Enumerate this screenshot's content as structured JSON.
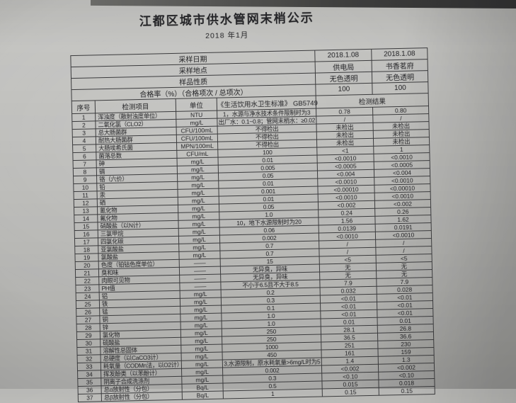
{
  "colors": {
    "paper": "#c2c2bf",
    "ink": "#232326",
    "table_line": "#3b3b3d",
    "top_strip": "#3d3d3c"
  },
  "title": "江都区城市供水管网末梢公示",
  "subtitle": "2018 年1月",
  "table": {
    "info_rows": [
      {
        "label": "采样日期",
        "values": [
          "2018.1.08",
          "2018.1.08"
        ]
      },
      {
        "label": "采样地点",
        "values": [
          "供电局",
          "书香茗府"
        ]
      },
      {
        "label": "样品性质",
        "values": [
          "无色透明",
          "无色透明"
        ]
      },
      {
        "label": "合格率（%）（合格项次 / 总项次）",
        "values": [
          "100",
          "100"
        ]
      }
    ],
    "columns": [
      "序号",
      "检测项目",
      "单位",
      "《生活饮用水卫生标准》 GB5749",
      "检测结果"
    ],
    "rows": [
      [
        "1",
        "浑浊度（散射浊度单位）",
        "NTU",
        "1，水源与净水技术条件限制时为3",
        "0.78",
        "0.80"
      ],
      [
        "2",
        "二氧化氯（CLO2）",
        "mg/L",
        "出厂水：0.1~0.8；管网末梢水：≥0.02",
        "/",
        "/"
      ],
      [
        "3",
        "总大肠菌群",
        "CFU/100mL",
        "不得检出",
        "未检出",
        "未检出"
      ],
      [
        "4",
        "耐热大肠菌群",
        "CFU/100mL",
        "不得检出",
        "未检出",
        "未检出"
      ],
      [
        "5",
        "大肠埃希氏菌",
        "MPN/100mL",
        "不得检出",
        "未检出",
        "未检出"
      ],
      [
        "6",
        "菌落总数",
        "CFU/mL",
        "100",
        "<1",
        "1"
      ],
      [
        "7",
        "砷",
        "mg/L",
        "0.01",
        "<0.0010",
        "<0.0010"
      ],
      [
        "8",
        "镉",
        "mg/L",
        "0.005",
        "<0.0005",
        "<0.0005"
      ],
      [
        "9",
        "铬（六价）",
        "mg/L",
        "0.05",
        "<0.004",
        "<0.004"
      ],
      [
        "10",
        "铅",
        "mg/L",
        "0.01",
        "<0.0010",
        "<0.0010"
      ],
      [
        "11",
        "汞",
        "mg/L",
        "0.001",
        "<0.00010",
        "<0.00010"
      ],
      [
        "12",
        "硒",
        "mg/L",
        "0.01",
        "<0.0010",
        "<0.0010"
      ],
      [
        "13",
        "氰化物",
        "mg/L",
        "0.05",
        "<0.002",
        "<0.002"
      ],
      [
        "14",
        "氟化物",
        "mg/L",
        "1.0",
        "0.24",
        "0.26"
      ],
      [
        "15",
        "硝酸盐（以N计）",
        "mg/L",
        "10，地下水源限制时为20",
        "1.56",
        "1.62"
      ],
      [
        "16",
        "三氯甲烷",
        "mg/L",
        "0.06",
        "0.0139",
        "0.0191"
      ],
      [
        "17",
        "四氯化碳",
        "mg/L",
        "0.002",
        "<0.0010",
        "<0.0010"
      ],
      [
        "18",
        "亚氯酸盐",
        "mg/L",
        "0.7",
        "/",
        "/"
      ],
      [
        "19",
        "氯酸盐",
        "mg/L",
        "0.7",
        "/",
        "/"
      ],
      [
        "20",
        "色度（铂钴色度单位）",
        "——",
        "15",
        "<5",
        "<5"
      ],
      [
        "21",
        "臭和味",
        "——",
        "无异臭，异味",
        "无",
        "无"
      ],
      [
        "22",
        "肉眼可见物",
        "——",
        "无异臭，异味",
        "无",
        "无"
      ],
      [
        "23",
        "PH值",
        "——",
        "不小于6.5且不大于8.5",
        "7.9",
        "7.9"
      ],
      [
        "24",
        "铝",
        "mg/L",
        "0.2",
        "0.032",
        "0.028"
      ],
      [
        "25",
        "铁",
        "mg/L",
        "0.3",
        "<0.01",
        "<0.01"
      ],
      [
        "26",
        "锰",
        "mg/L",
        "0.1",
        "<0.01",
        "<0.01"
      ],
      [
        "27",
        "铜",
        "mg/L",
        "1.0",
        "<0.01",
        "<0.01"
      ],
      [
        "28",
        "锌",
        "mg/L",
        "1.0",
        "0.01",
        "0.01"
      ],
      [
        "29",
        "氯化物",
        "mg/L",
        "250",
        "28.1",
        "26.8"
      ],
      [
        "30",
        "硫酸盐",
        "mg/L",
        "250",
        "36.5",
        "36.6"
      ],
      [
        "31",
        "溶解性总固体",
        "mg/L",
        "1000",
        "251",
        "230"
      ],
      [
        "32",
        "总硬度（以CaCO3计）",
        "mg/L",
        "450",
        "161",
        "159"
      ],
      [
        "33",
        "耗氧量（CODMn法，以O2计）",
        "mg/L",
        "3,水源限制，原水耗氧量>6mg/L时为5",
        "1.4",
        "1.3"
      ],
      [
        "34",
        "挥发酚类（以苯酚计）",
        "mg/L",
        "0.002",
        "<0.002",
        "<0.002"
      ],
      [
        "35",
        "阴离子合成洗涤剂",
        "mg/L",
        "0.3",
        "<0.10",
        "<0.10"
      ],
      [
        "36",
        "总α放射性（分包）",
        "Bq/L",
        "0.5",
        "0.015",
        "0.018"
      ],
      [
        "37",
        "总β放射性（分包）",
        "Bq/L",
        "1",
        "0.15",
        "0.15"
      ]
    ]
  }
}
